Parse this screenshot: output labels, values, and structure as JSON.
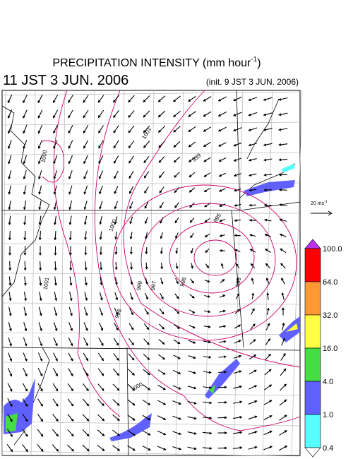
{
  "header": {
    "title": "PRECIPITATION INTENSITY (mm hour",
    "title_exponent": "-1",
    "title_close": ")",
    "valid_time": "11 JST 3 JUN. 2006",
    "init_time": "(init. 9 JST 3 JUN. 2006)"
  },
  "wind_scale": {
    "label": "20 ms",
    "exponent": "-1"
  },
  "colorbar": {
    "labels": [
      "100.0",
      "64.0",
      "32.0",
      "16.0",
      "4.0",
      "1.0",
      "0.4"
    ],
    "colors": [
      "#ff0000",
      "#ff9933",
      "#ffff44",
      "#44dd44",
      "#6060ff",
      "#55ffff"
    ],
    "over_color": "#bb33ee",
    "under_color": "#ffffff"
  },
  "contour_labels": [
    "1001",
    "1000",
    "1000",
    "999",
    "998",
    "997",
    "996",
    "995",
    "998",
    "999",
    "1001",
    "1000"
  ]
}
